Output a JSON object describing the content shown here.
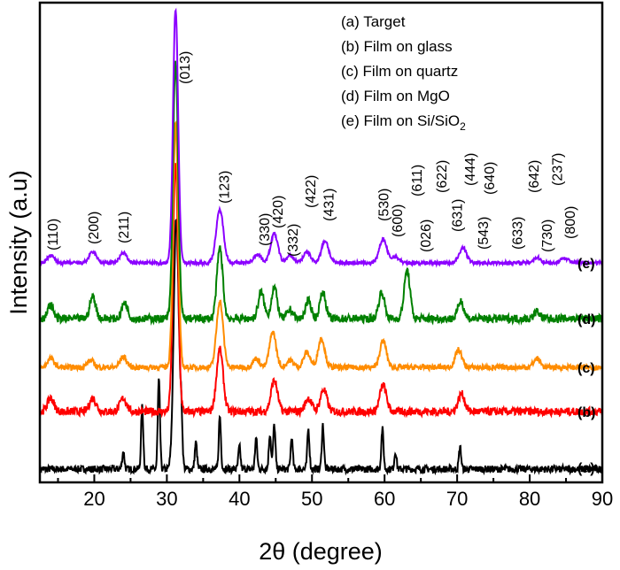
{
  "chart_data": {
    "type": "line",
    "xlabel": "2θ (degree)",
    "ylabel": "Intensity (a.u)",
    "xlim": [
      12.5,
      90
    ],
    "xticks": [
      20,
      30,
      40,
      50,
      60,
      70,
      80,
      90
    ],
    "grid": false,
    "legend_placement": "top-right",
    "legend": [
      "(a) Target",
      "(b) Film on glass",
      "(c) Film on quartz",
      "(d) Film on MgO",
      "(e) Film on Si/SiO"
    ],
    "legend_subscript": "2",
    "series": [
      {
        "name": "(a)",
        "label": "(a)",
        "color": "#000000",
        "offset": 15,
        "noise": 8,
        "width": 0.15,
        "peaks": [
          [
            24,
            20
          ],
          [
            26.6,
            70
          ],
          [
            28.9,
            100
          ],
          [
            31.3,
            285
          ],
          [
            32,
            45
          ],
          [
            34,
            30
          ],
          [
            37.3,
            60
          ],
          [
            40,
            25
          ],
          [
            42.3,
            35
          ],
          [
            44.2,
            40
          ],
          [
            44.8,
            50
          ],
          [
            47.2,
            35
          ],
          [
            49.5,
            45
          ],
          [
            51.5,
            50
          ],
          [
            59.7,
            45
          ],
          [
            61.5,
            20
          ],
          [
            70.4,
            25
          ]
        ]
      },
      {
        "name": "(b)",
        "label": "(b)",
        "color": "#ff0000",
        "offset": 80,
        "noise": 9,
        "width": 0.45,
        "peaks": [
          [
            14,
            15
          ],
          [
            19.8,
            15
          ],
          [
            24,
            15
          ],
          [
            31.2,
            280
          ],
          [
            37.3,
            70
          ],
          [
            44.8,
            35
          ],
          [
            49.5,
            15
          ],
          [
            51.6,
            25
          ],
          [
            59.8,
            30
          ],
          [
            70.6,
            20
          ]
        ]
      },
      {
        "name": "(c)",
        "label": "(c)",
        "color": "#ff8c00",
        "offset": 130,
        "noise": 6,
        "width": 0.45,
        "peaks": [
          [
            14,
            10
          ],
          [
            19.5,
            8
          ],
          [
            24,
            12
          ],
          [
            31.2,
            275
          ],
          [
            37.3,
            75
          ],
          [
            42.3,
            10
          ],
          [
            44.6,
            40
          ],
          [
            47,
            8
          ],
          [
            49.3,
            17
          ],
          [
            51.3,
            33
          ],
          [
            59.8,
            30
          ],
          [
            70.2,
            20
          ],
          [
            81,
            10
          ]
        ]
      },
      {
        "name": "(d)",
        "label": "(d)",
        "color": "#008000",
        "offset": 185,
        "noise": 9,
        "width": 0.4,
        "peaks": [
          [
            14,
            15
          ],
          [
            19.8,
            25
          ],
          [
            24.2,
            18
          ],
          [
            31.2,
            290
          ],
          [
            37.3,
            80
          ],
          [
            43,
            30
          ],
          [
            44.8,
            35
          ],
          [
            47,
            10
          ],
          [
            49.5,
            20
          ],
          [
            51.5,
            30
          ],
          [
            59.6,
            30
          ],
          [
            63.1,
            55
          ],
          [
            70.5,
            20
          ],
          [
            81,
            8
          ]
        ]
      },
      {
        "name": "(e)",
        "label": "(e)",
        "color": "#8b00ff",
        "offset": 248,
        "noise": 4,
        "width": 0.5,
        "peaks": [
          [
            14,
            8
          ],
          [
            19.8,
            12
          ],
          [
            24,
            11
          ],
          [
            31.2,
            287
          ],
          [
            37.3,
            60
          ],
          [
            42.5,
            10
          ],
          [
            44.8,
            33
          ],
          [
            47,
            8
          ],
          [
            49.3,
            12
          ],
          [
            51.8,
            25
          ],
          [
            59.8,
            27
          ],
          [
            61.5,
            7
          ],
          [
            70.8,
            17
          ],
          [
            81,
            6
          ],
          [
            84.8,
            6
          ]
        ]
      }
    ],
    "annotations": [
      {
        "text": "(110)",
        "x": 14.2,
        "y": 262
      },
      {
        "text": "(200)",
        "x": 19.8,
        "y": 269
      },
      {
        "text": "(211)",
        "x": 24,
        "y": 270
      },
      {
        "text": "(013)",
        "x": 32.4,
        "y": 450
      },
      {
        "text": "(123)",
        "x": 37.8,
        "y": 315
      },
      {
        "text": "(330)",
        "x": 43.4,
        "y": 267
      },
      {
        "text": "(420)",
        "x": 45.2,
        "y": 287
      },
      {
        "text": "(332)",
        "x": 47.3,
        "y": 255
      },
      {
        "text": "(422)",
        "x": 49.7,
        "y": 310
      },
      {
        "text": "(431)",
        "x": 52.2,
        "y": 295
      },
      {
        "text": "(530)",
        "x": 59.8,
        "y": 295
      },
      {
        "text": "(600)",
        "x": 61.7,
        "y": 277
      },
      {
        "text": "(611)",
        "x": 64.4,
        "y": 323
      },
      {
        "text": "(622)",
        "x": 67.8,
        "y": 327
      },
      {
        "text": "(026)",
        "x": 65.6,
        "y": 260
      },
      {
        "text": "(631)",
        "x": 69.9,
        "y": 283
      },
      {
        "text": "(444)",
        "x": 71.7,
        "y": 335
      },
      {
        "text": "(543)",
        "x": 73.5,
        "y": 263
      },
      {
        "text": "(640)",
        "x": 74.4,
        "y": 325
      },
      {
        "text": "(633)",
        "x": 78.2,
        "y": 263
      },
      {
        "text": "(642)",
        "x": 80.5,
        "y": 327
      },
      {
        "text": "(730)",
        "x": 82.3,
        "y": 260
      },
      {
        "text": "(237)",
        "x": 83.7,
        "y": 335
      },
      {
        "text": "(800)",
        "x": 85.5,
        "y": 275
      }
    ]
  }
}
